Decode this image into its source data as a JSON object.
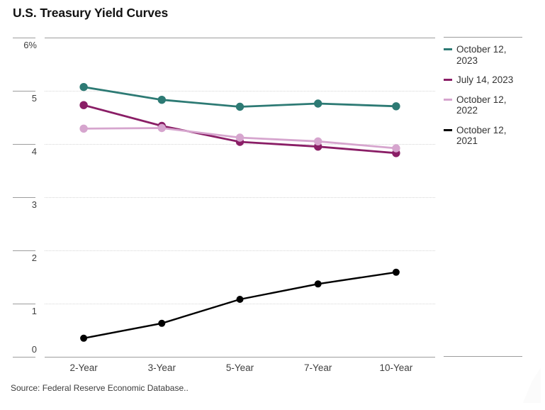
{
  "page": {
    "title": "U.S. Treasury Yield Curves",
    "source": "Source: Federal Reserve Economic Database.."
  },
  "chart_data": {
    "type": "line",
    "title": "U.S. Treasury Yield Curves",
    "categories": [
      "2-Year",
      "3-Year",
      "5-Year",
      "7-Year",
      "10-Year"
    ],
    "series": [
      {
        "name": "October 12, 2023",
        "legend_lines": [
          "October 12,",
          "2023"
        ],
        "color": "#2d7a74",
        "values": [
          5.07,
          4.83,
          4.7,
          4.76,
          4.71
        ]
      },
      {
        "name": "July 14, 2023",
        "legend_lines": [
          "July 14, 2023"
        ],
        "color": "#8a1e66",
        "values": [
          4.73,
          4.34,
          4.04,
          3.95,
          3.83
        ]
      },
      {
        "name": "October 12, 2022",
        "legend_lines": [
          "October 12,",
          "2022"
        ],
        "color": "#d6a5ce",
        "values": [
          4.29,
          4.3,
          4.12,
          4.05,
          3.92
        ]
      },
      {
        "name": "October 12, 2021",
        "legend_lines": [
          "October 12,",
          "2021"
        ],
        "color": "#000000",
        "values": [
          0.35,
          0.63,
          1.08,
          1.37,
          1.59
        ]
      }
    ],
    "y_axis": {
      "min": 0,
      "max": 6,
      "tick_step": 1,
      "tick_labels": [
        "6%",
        "5",
        "4",
        "3",
        "2",
        "1",
        "0"
      ],
      "unit": "percent"
    },
    "x_axis": {
      "label_style": "maturity"
    },
    "grid": "horizontal dotted interior, solid top and bottom rules",
    "legend_position": "right",
    "marker": "filled circle"
  }
}
